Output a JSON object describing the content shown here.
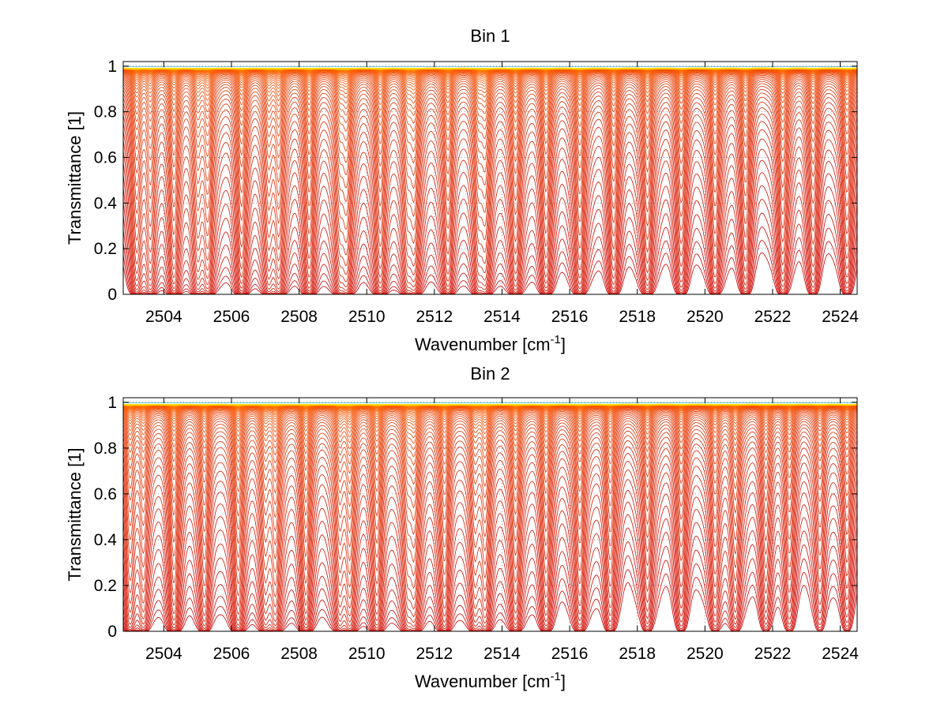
{
  "chart_data": [
    {
      "type": "line",
      "title": "Bin 1",
      "xlabel": "Wavenumber [cm",
      "xlabel_superscript": "-1",
      "xlabel_suffix": "]",
      "ylabel": "Transmittance [1]",
      "xlim": [
        2502.8,
        2524.5
      ],
      "ylim": [
        0,
        1.02
      ],
      "xticks": [
        2504,
        2506,
        2508,
        2510,
        2512,
        2514,
        2516,
        2518,
        2520,
        2522,
        2524
      ],
      "yticks": [
        0,
        0.2,
        0.4,
        0.6,
        0.8,
        1
      ],
      "grid": "dotted",
      "series_count": 60,
      "color_low": "#cc0000",
      "color_mid": "#ff6600",
      "color_high": "#ffd700",
      "top_edge_color": "#00a0c0",
      "absorption_lines": [
        {
          "x": 2503.2,
          "depth": 0.85
        },
        {
          "x": 2503.6,
          "depth": 0.65
        },
        {
          "x": 2504.3,
          "depth": 0.95
        },
        {
          "x": 2505.0,
          "depth": 0.7
        },
        {
          "x": 2505.3,
          "depth": 0.9
        },
        {
          "x": 2506.3,
          "depth": 0.95
        },
        {
          "x": 2507.1,
          "depth": 0.7
        },
        {
          "x": 2507.4,
          "depth": 0.9
        },
        {
          "x": 2508.3,
          "depth": 0.95
        },
        {
          "x": 2509.2,
          "depth": 0.65
        },
        {
          "x": 2509.4,
          "depth": 0.9
        },
        {
          "x": 2510.4,
          "depth": 0.95
        },
        {
          "x": 2511.2,
          "depth": 0.65
        },
        {
          "x": 2511.4,
          "depth": 0.9
        },
        {
          "x": 2512.4,
          "depth": 0.9
        },
        {
          "x": 2513.3,
          "depth": 0.65
        },
        {
          "x": 2513.5,
          "depth": 0.85
        },
        {
          "x": 2514.4,
          "depth": 0.9
        },
        {
          "x": 2515.3,
          "depth": 0.8
        },
        {
          "x": 2516.3,
          "depth": 0.85
        },
        {
          "x": 2517.3,
          "depth": 0.7
        },
        {
          "x": 2518.3,
          "depth": 0.75
        },
        {
          "x": 2519.3,
          "depth": 0.65
        },
        {
          "x": 2520.3,
          "depth": 0.7
        },
        {
          "x": 2521.2,
          "depth": 0.6
        },
        {
          "x": 2522.3,
          "depth": 0.65
        },
        {
          "x": 2523.2,
          "depth": 0.55
        },
        {
          "x": 2524.2,
          "depth": 0.6
        }
      ]
    },
    {
      "type": "line",
      "title": "Bin 2",
      "xlabel": "Wavenumber [cm",
      "xlabel_superscript": "-1",
      "xlabel_suffix": "]",
      "ylabel": "Transmittance [1]",
      "xlim": [
        2502.8,
        2524.5
      ],
      "ylim": [
        0,
        1.02
      ],
      "xticks": [
        2504,
        2506,
        2508,
        2510,
        2512,
        2514,
        2516,
        2518,
        2520,
        2522,
        2524
      ],
      "yticks": [
        0,
        0.2,
        0.4,
        0.6,
        0.8,
        1
      ],
      "grid": "dotted",
      "series_count": 60,
      "color_low": "#cc0000",
      "color_mid": "#ff6600",
      "color_high": "#ffd700",
      "top_edge_color": "#00a0c0",
      "absorption_lines": [
        {
          "x": 2503.0,
          "depth": 0.75
        },
        {
          "x": 2503.4,
          "depth": 0.6
        },
        {
          "x": 2504.3,
          "depth": 0.97
        },
        {
          "x": 2505.2,
          "depth": 0.7
        },
        {
          "x": 2506.2,
          "depth": 0.97
        },
        {
          "x": 2507.0,
          "depth": 0.65
        },
        {
          "x": 2507.3,
          "depth": 0.9
        },
        {
          "x": 2508.2,
          "depth": 0.95
        },
        {
          "x": 2509.2,
          "depth": 0.7
        },
        {
          "x": 2509.5,
          "depth": 0.9
        },
        {
          "x": 2510.3,
          "depth": 0.95
        },
        {
          "x": 2511.2,
          "depth": 0.6
        },
        {
          "x": 2511.4,
          "depth": 0.85
        },
        {
          "x": 2512.3,
          "depth": 0.85
        },
        {
          "x": 2513.2,
          "depth": 0.6
        },
        {
          "x": 2513.5,
          "depth": 0.8
        },
        {
          "x": 2514.4,
          "depth": 0.8
        },
        {
          "x": 2515.3,
          "depth": 0.7
        },
        {
          "x": 2516.3,
          "depth": 0.7
        },
        {
          "x": 2517.2,
          "depth": 0.6
        },
        {
          "x": 2518.3,
          "depth": 0.55
        },
        {
          "x": 2519.3,
          "depth": 0.5
        },
        {
          "x": 2520.3,
          "depth": 0.5
        },
        {
          "x": 2520.9,
          "depth": 0.55
        },
        {
          "x": 2521.8,
          "depth": 0.45
        },
        {
          "x": 2522.5,
          "depth": 0.45
        },
        {
          "x": 2523.4,
          "depth": 0.4
        },
        {
          "x": 2524.2,
          "depth": 0.45
        }
      ]
    }
  ]
}
